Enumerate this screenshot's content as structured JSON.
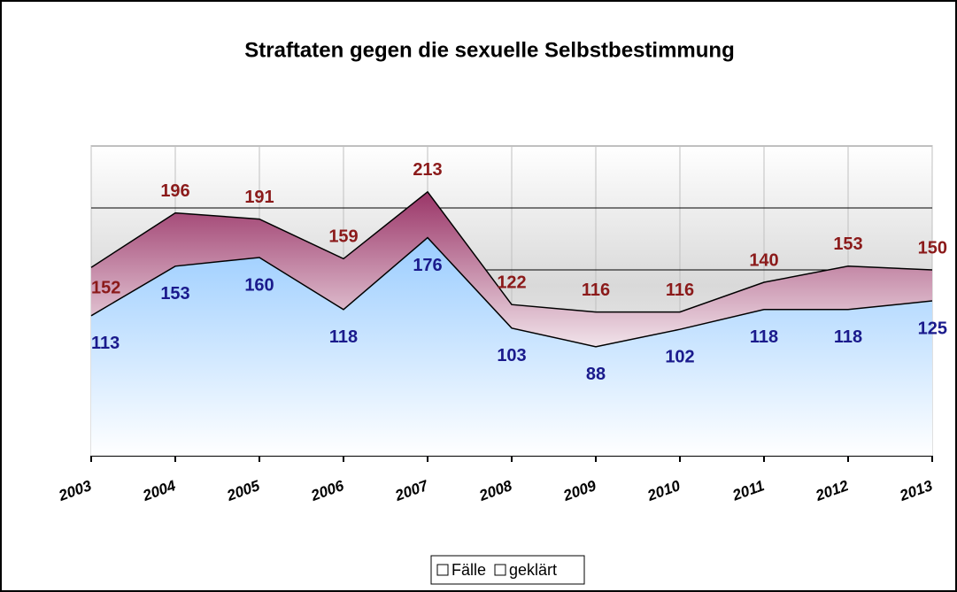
{
  "chart_data": {
    "type": "area",
    "title": "Straftaten gegen die sexuelle Selbstbestimmung",
    "categories": [
      "2003",
      "2004",
      "2005",
      "2006",
      "2007",
      "2008",
      "2009",
      "2010",
      "2011",
      "2012",
      "2013"
    ],
    "series": [
      {
        "name": "Fälle",
        "color": "#993366",
        "label_color": "#8b1a1a",
        "values": [
          152,
          196,
          191,
          159,
          213,
          122,
          116,
          116,
          140,
          153,
          150
        ]
      },
      {
        "name": "geklärt",
        "color": "#99ccff",
        "label_color": "#1a1a8c",
        "values": [
          113,
          153,
          160,
          118,
          176,
          103,
          88,
          102,
          118,
          118,
          125
        ]
      }
    ],
    "ylim": [
      0,
      250
    ],
    "yticks": [
      0,
      50,
      100,
      150,
      200,
      250
    ],
    "grid": true
  }
}
